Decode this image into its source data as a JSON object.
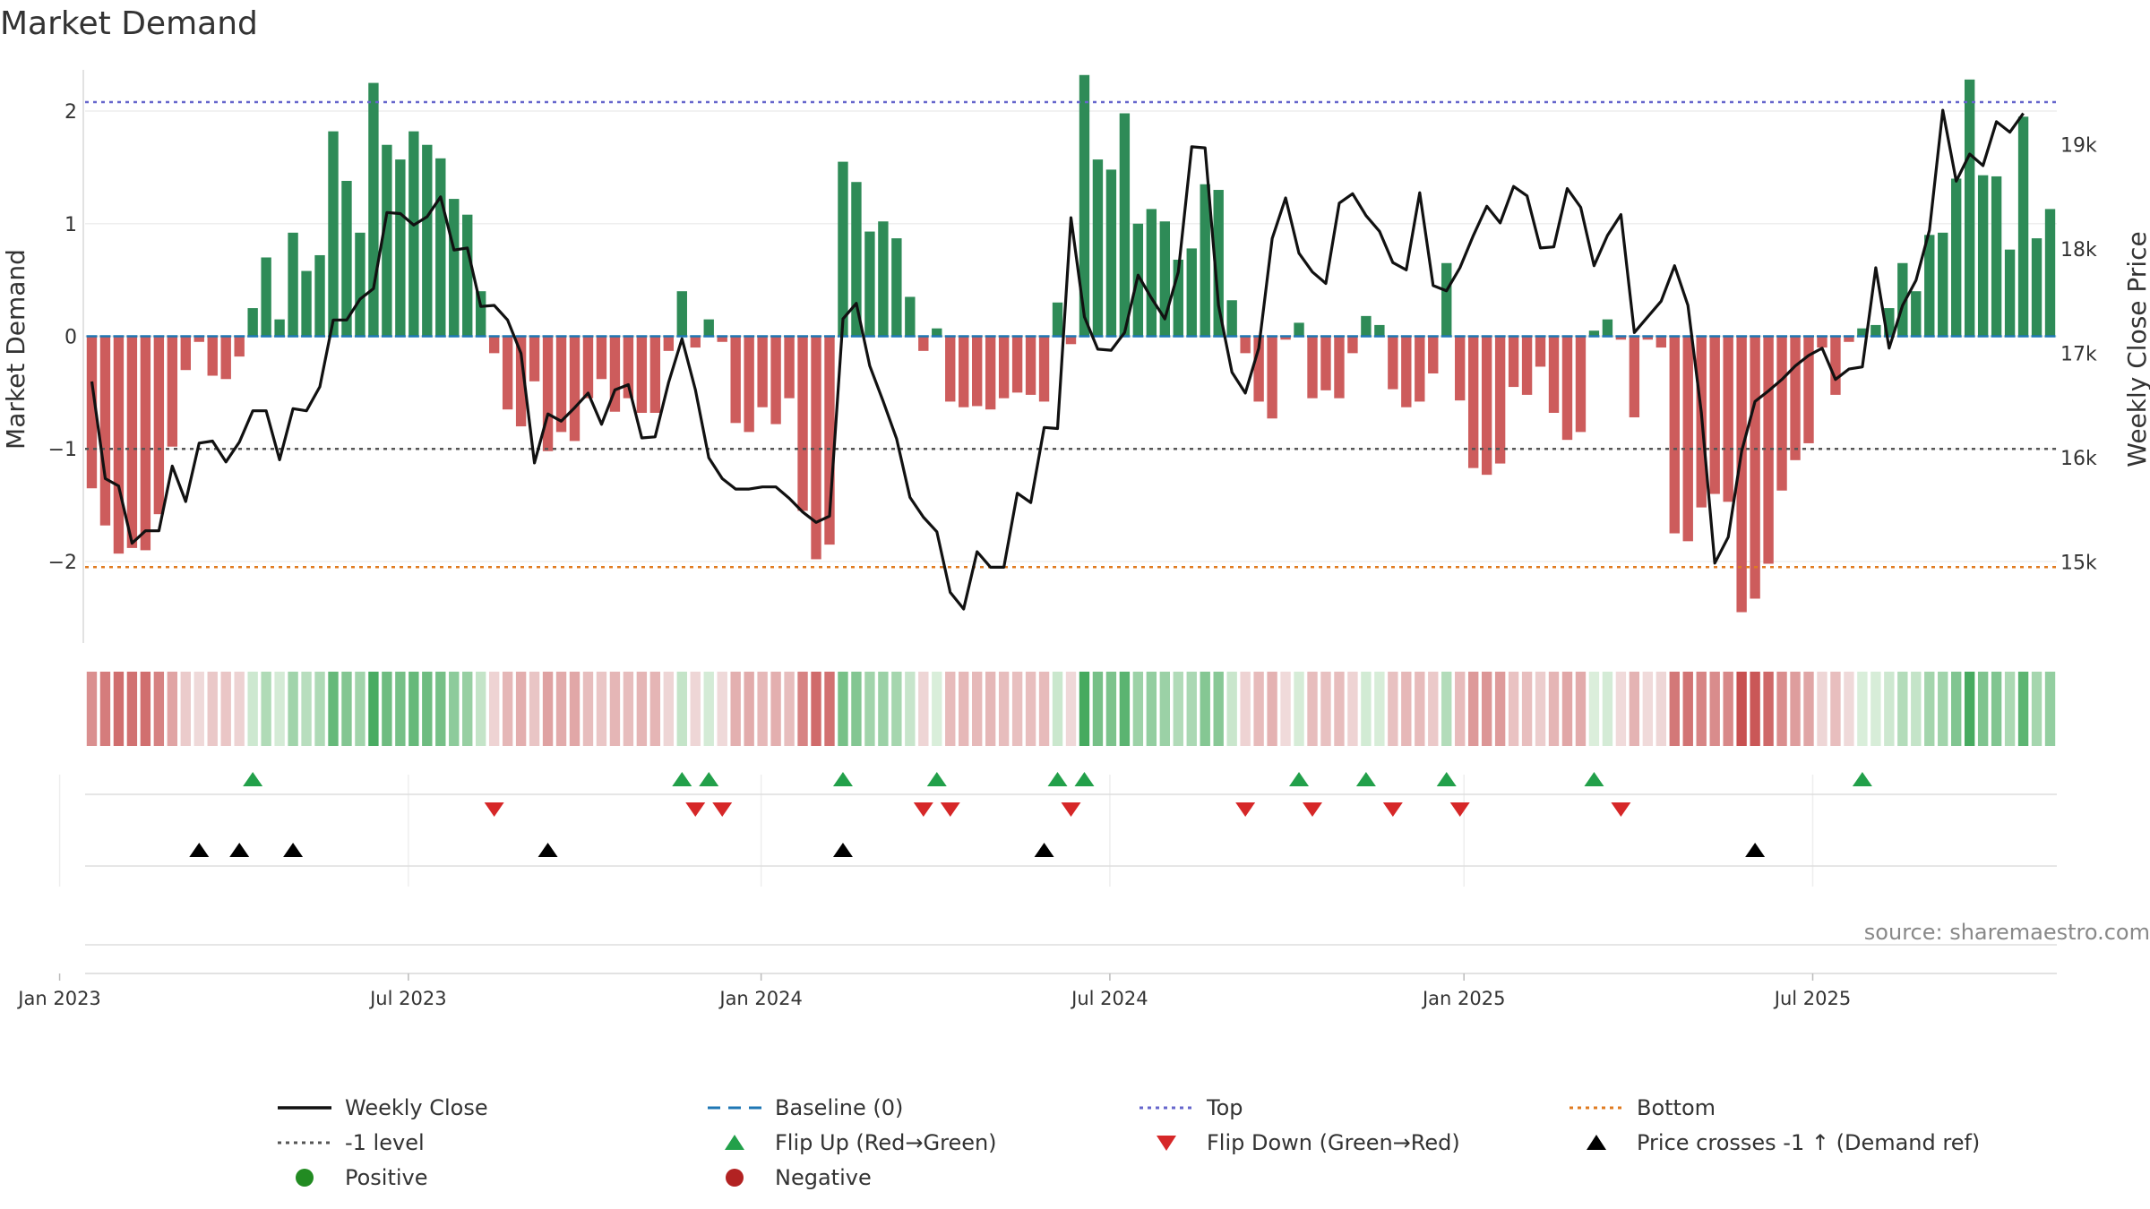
{
  "colors": {
    "positive": "#2e8b57",
    "negative": "#cd5c5c",
    "price": "#111111",
    "top": "#6666cc",
    "bottom": "#e07b20",
    "minus1": "#555555",
    "baseline": "#1f77b4",
    "flip_up": "#22a04a",
    "flip_down": "#d62728",
    "cross": "#000000",
    "pos_dot": "#228b22",
    "neg_dot": "#b22222"
  },
  "chart_data": {
    "type": "bar",
    "title": "Market Demand",
    "ylabel": "Market Demand",
    "y2label": "Weekly Close Price",
    "ylim": [
      -2.7,
      2.35
    ],
    "y2lim": [
      14250,
      19700
    ],
    "yticks": [
      "−2",
      "−1",
      "0",
      "1",
      "2"
    ],
    "yticks_values": [
      -2,
      -1,
      0,
      1,
      2
    ],
    "y2ticks": [
      "15k",
      "16k",
      "17k",
      "18k",
      "19k"
    ],
    "y2ticks_values": [
      15000,
      16000,
      17000,
      18000,
      19000
    ],
    "xticks": [
      "Jan 2023",
      "Jul 2023",
      "Jan 2024",
      "Jul 2024",
      "Jan 2025",
      "Jul 2025"
    ],
    "xticks_weeks": [
      -2.4,
      23.6,
      49.9,
      75.9,
      102.3,
      128.3
    ],
    "top_level": 2.08,
    "bottom_level": -2.05,
    "minus1_level": -1.0,
    "baseline_level": 0,
    "demand": [
      -1.35,
      -1.68,
      -1.93,
      -1.88,
      -1.9,
      -1.58,
      -0.98,
      -0.3,
      -0.05,
      -0.35,
      -0.38,
      -0.18,
      0.25,
      0.7,
      0.15,
      0.92,
      0.58,
      0.72,
      1.82,
      1.38,
      0.92,
      2.25,
      1.7,
      1.57,
      1.82,
      1.7,
      1.58,
      1.22,
      1.08,
      0.4,
      -0.15,
      -0.65,
      -0.8,
      -0.4,
      -1.02,
      -0.85,
      -0.93,
      -0.55,
      -0.38,
      -0.67,
      -0.55,
      -0.68,
      -0.68,
      -0.13,
      0.4,
      -0.1,
      0.15,
      -0.05,
      -0.77,
      -0.85,
      -0.63,
      -0.78,
      -0.55,
      -1.55,
      -1.98,
      -1.85,
      1.55,
      1.37,
      0.93,
      1.02,
      0.87,
      0.35,
      -0.13,
      0.07,
      -0.58,
      -0.63,
      -0.62,
      -0.65,
      -0.55,
      -0.5,
      -0.52,
      -0.58,
      0.3,
      -0.07,
      2.32,
      1.57,
      1.48,
      1.98,
      1.0,
      1.13,
      1.02,
      0.68,
      0.78,
      1.35,
      1.3,
      0.32,
      -0.15,
      -0.58,
      -0.73,
      -0.03,
      0.12,
      -0.55,
      -0.48,
      -0.55,
      -0.15,
      0.18,
      0.1,
      -0.47,
      -0.63,
      -0.58,
      -0.33,
      0.65,
      -0.57,
      -1.17,
      -1.23,
      -1.13,
      -0.45,
      -0.52,
      -0.27,
      -0.68,
      -0.92,
      -0.85,
      0.05,
      0.15,
      -0.03,
      -0.72,
      -0.03,
      -0.1,
      -1.75,
      -1.82,
      -1.52,
      -1.4,
      -1.47,
      -2.45,
      -2.33,
      -2.02,
      -1.37,
      -1.1,
      -0.95,
      -0.1,
      -0.52,
      -0.05,
      0.07,
      0.1,
      0.25,
      0.65,
      0.4,
      0.9,
      0.92,
      1.4,
      2.28,
      1.43,
      1.42,
      0.77,
      1.95,
      0.87,
      1.13
    ],
    "price": [
      16730,
      15800,
      15730,
      15180,
      15300,
      15300,
      15920,
      15580,
      16140,
      16160,
      15960,
      16150,
      16450,
      16450,
      15980,
      16470,
      16450,
      16680,
      17320,
      17320,
      17520,
      17620,
      18350,
      18340,
      18230,
      18310,
      18500,
      17990,
      18010,
      17450,
      17460,
      17320,
      17000,
      15950,
      16420,
      16350,
      16480,
      16620,
      16320,
      16650,
      16700,
      16190,
      16200,
      16720,
      17140,
      16650,
      16000,
      15800,
      15700,
      15700,
      15720,
      15720,
      15610,
      15480,
      15380,
      15440,
      17330,
      17480,
      16880,
      16540,
      16180,
      15620,
      15430,
      15290,
      14710,
      14550,
      15100,
      14950,
      14950,
      15660,
      15570,
      16290,
      16280,
      18300,
      17350,
      17040,
      17030,
      17200,
      17750,
      17530,
      17330,
      17780,
      18980,
      18970,
      17460,
      16820,
      16620,
      17050,
      18100,
      18490,
      17960,
      17780,
      17670,
      18440,
      18530,
      18320,
      18170,
      17870,
      17800,
      18540,
      17650,
      17600,
      17820,
      18130,
      18410,
      18250,
      18600,
      18510,
      18010,
      18020,
      18580,
      18400,
      17840,
      18130,
      18330,
      17200,
      17350,
      17500,
      17840,
      17460,
      16430,
      14990,
      15240,
      16060,
      16540,
      16640,
      16750,
      16880,
      16980,
      17050,
      16750,
      16850,
      16870,
      17820,
      17050,
      17460,
      17700,
      18180,
      19330,
      18650,
      18910,
      18800,
      19220,
      19120,
      19300
    ]
  },
  "legend": [
    {
      "label": "Weekly Close",
      "kind": "solid",
      "color": "#111111"
    },
    {
      "label": "Baseline (0)",
      "kind": "dashed",
      "color": "#1f77b4"
    },
    {
      "label": "Top",
      "kind": "dotted",
      "color": "#6666cc"
    },
    {
      "label": "Bottom",
      "kind": "dotted",
      "color": "#e07b20"
    },
    {
      "label": "-1 level",
      "kind": "dotted",
      "color": "#555555"
    },
    {
      "label": "Flip Up (Red→Green)",
      "kind": "tri-up",
      "color": "#22a04a"
    },
    {
      "label": "Flip Down (Green→Red)",
      "kind": "tri-down",
      "color": "#d62728"
    },
    {
      "label": "Price crosses -1 ↑ (Demand ref)",
      "kind": "tri-up",
      "color": "#000000"
    },
    {
      "label": "Positive",
      "kind": "dot",
      "color": "#228b22"
    },
    {
      "label": "Negative",
      "kind": "dot",
      "color": "#b22222"
    }
  ],
  "source": "source: sharemaestro.com"
}
